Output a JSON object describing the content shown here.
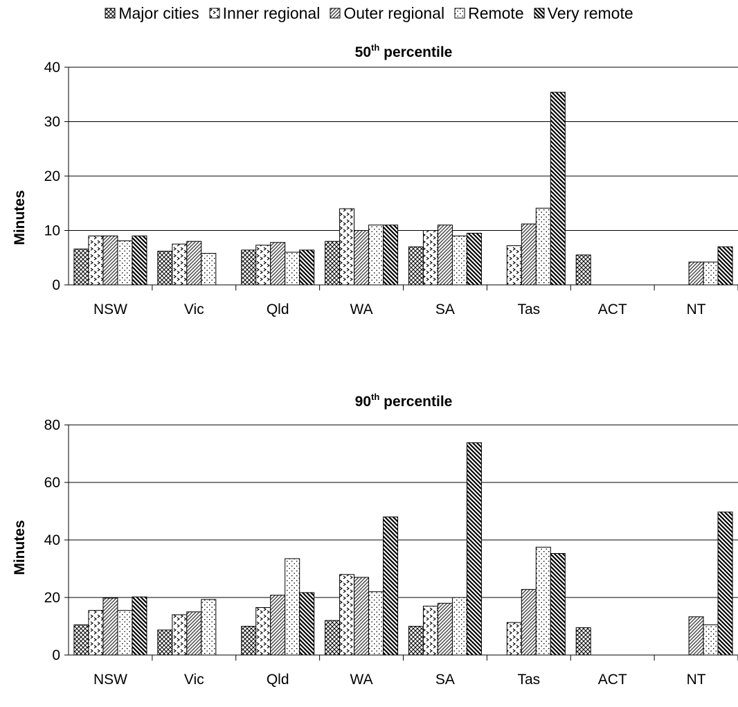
{
  "legend": [
    {
      "label": "Major cities",
      "pattern": "crosshatch"
    },
    {
      "label": "Inner regional",
      "pattern": "chevron"
    },
    {
      "label": "Outer regional",
      "pattern": "diagonal"
    },
    {
      "label": "Remote",
      "pattern": "dots"
    },
    {
      "label": "Very remote",
      "pattern": "heavy-diagonal"
    }
  ],
  "chart_data": [
    {
      "type": "bar",
      "title_main": "50",
      "title_sup": "th",
      "title_rest": " percentile",
      "ylabel": "Minutes",
      "ylim": [
        0,
        40
      ],
      "yticks": [
        0,
        10,
        20,
        30,
        40
      ],
      "grid": true,
      "legend_position": "top",
      "categories": [
        "NSW",
        "Vic",
        "Qld",
        "WA",
        "SA",
        "Tas",
        "ACT",
        "NT"
      ],
      "series": [
        {
          "name": "Major cities",
          "values": [
            6.6,
            6.2,
            6.4,
            8,
            7,
            null,
            5.5,
            null
          ]
        },
        {
          "name": "Inner regional",
          "values": [
            9,
            7.5,
            7.3,
            14,
            10,
            7.2,
            null,
            null
          ]
        },
        {
          "name": "Outer regional",
          "values": [
            9,
            8,
            7.8,
            10,
            11,
            11.2,
            null,
            4.2
          ]
        },
        {
          "name": "Remote",
          "values": [
            8.1,
            5.8,
            6,
            11,
            9,
            14.1,
            null,
            4.2
          ]
        },
        {
          "name": "Very remote",
          "values": [
            9,
            null,
            6.4,
            11,
            9.5,
            35.4,
            null,
            7
          ]
        }
      ]
    },
    {
      "type": "bar",
      "title_main": "90",
      "title_sup": "th",
      "title_rest": " percentile",
      "ylabel": "Minutes",
      "ylim": [
        0,
        80
      ],
      "yticks": [
        0,
        20,
        40,
        60,
        80
      ],
      "grid": true,
      "categories": [
        "NSW",
        "Vic",
        "Qld",
        "WA",
        "SA",
        "Tas",
        "ACT",
        "NT"
      ],
      "series": [
        {
          "name": "Major cities",
          "values": [
            10.5,
            8.7,
            10,
            12,
            10,
            null,
            9.5,
            null
          ]
        },
        {
          "name": "Inner regional",
          "values": [
            15.5,
            14,
            16.5,
            28,
            17,
            11.3,
            null,
            null
          ]
        },
        {
          "name": "Outer regional",
          "values": [
            19.8,
            15,
            20.8,
            27,
            18,
            22.8,
            null,
            13.3
          ]
        },
        {
          "name": "Remote",
          "values": [
            15.5,
            19.3,
            33.5,
            22,
            20,
            37.5,
            null,
            10.5
          ]
        },
        {
          "name": "Very remote",
          "values": [
            20.2,
            null,
            21.7,
            48,
            73.8,
            35.3,
            null,
            49.7
          ]
        }
      ]
    }
  ]
}
